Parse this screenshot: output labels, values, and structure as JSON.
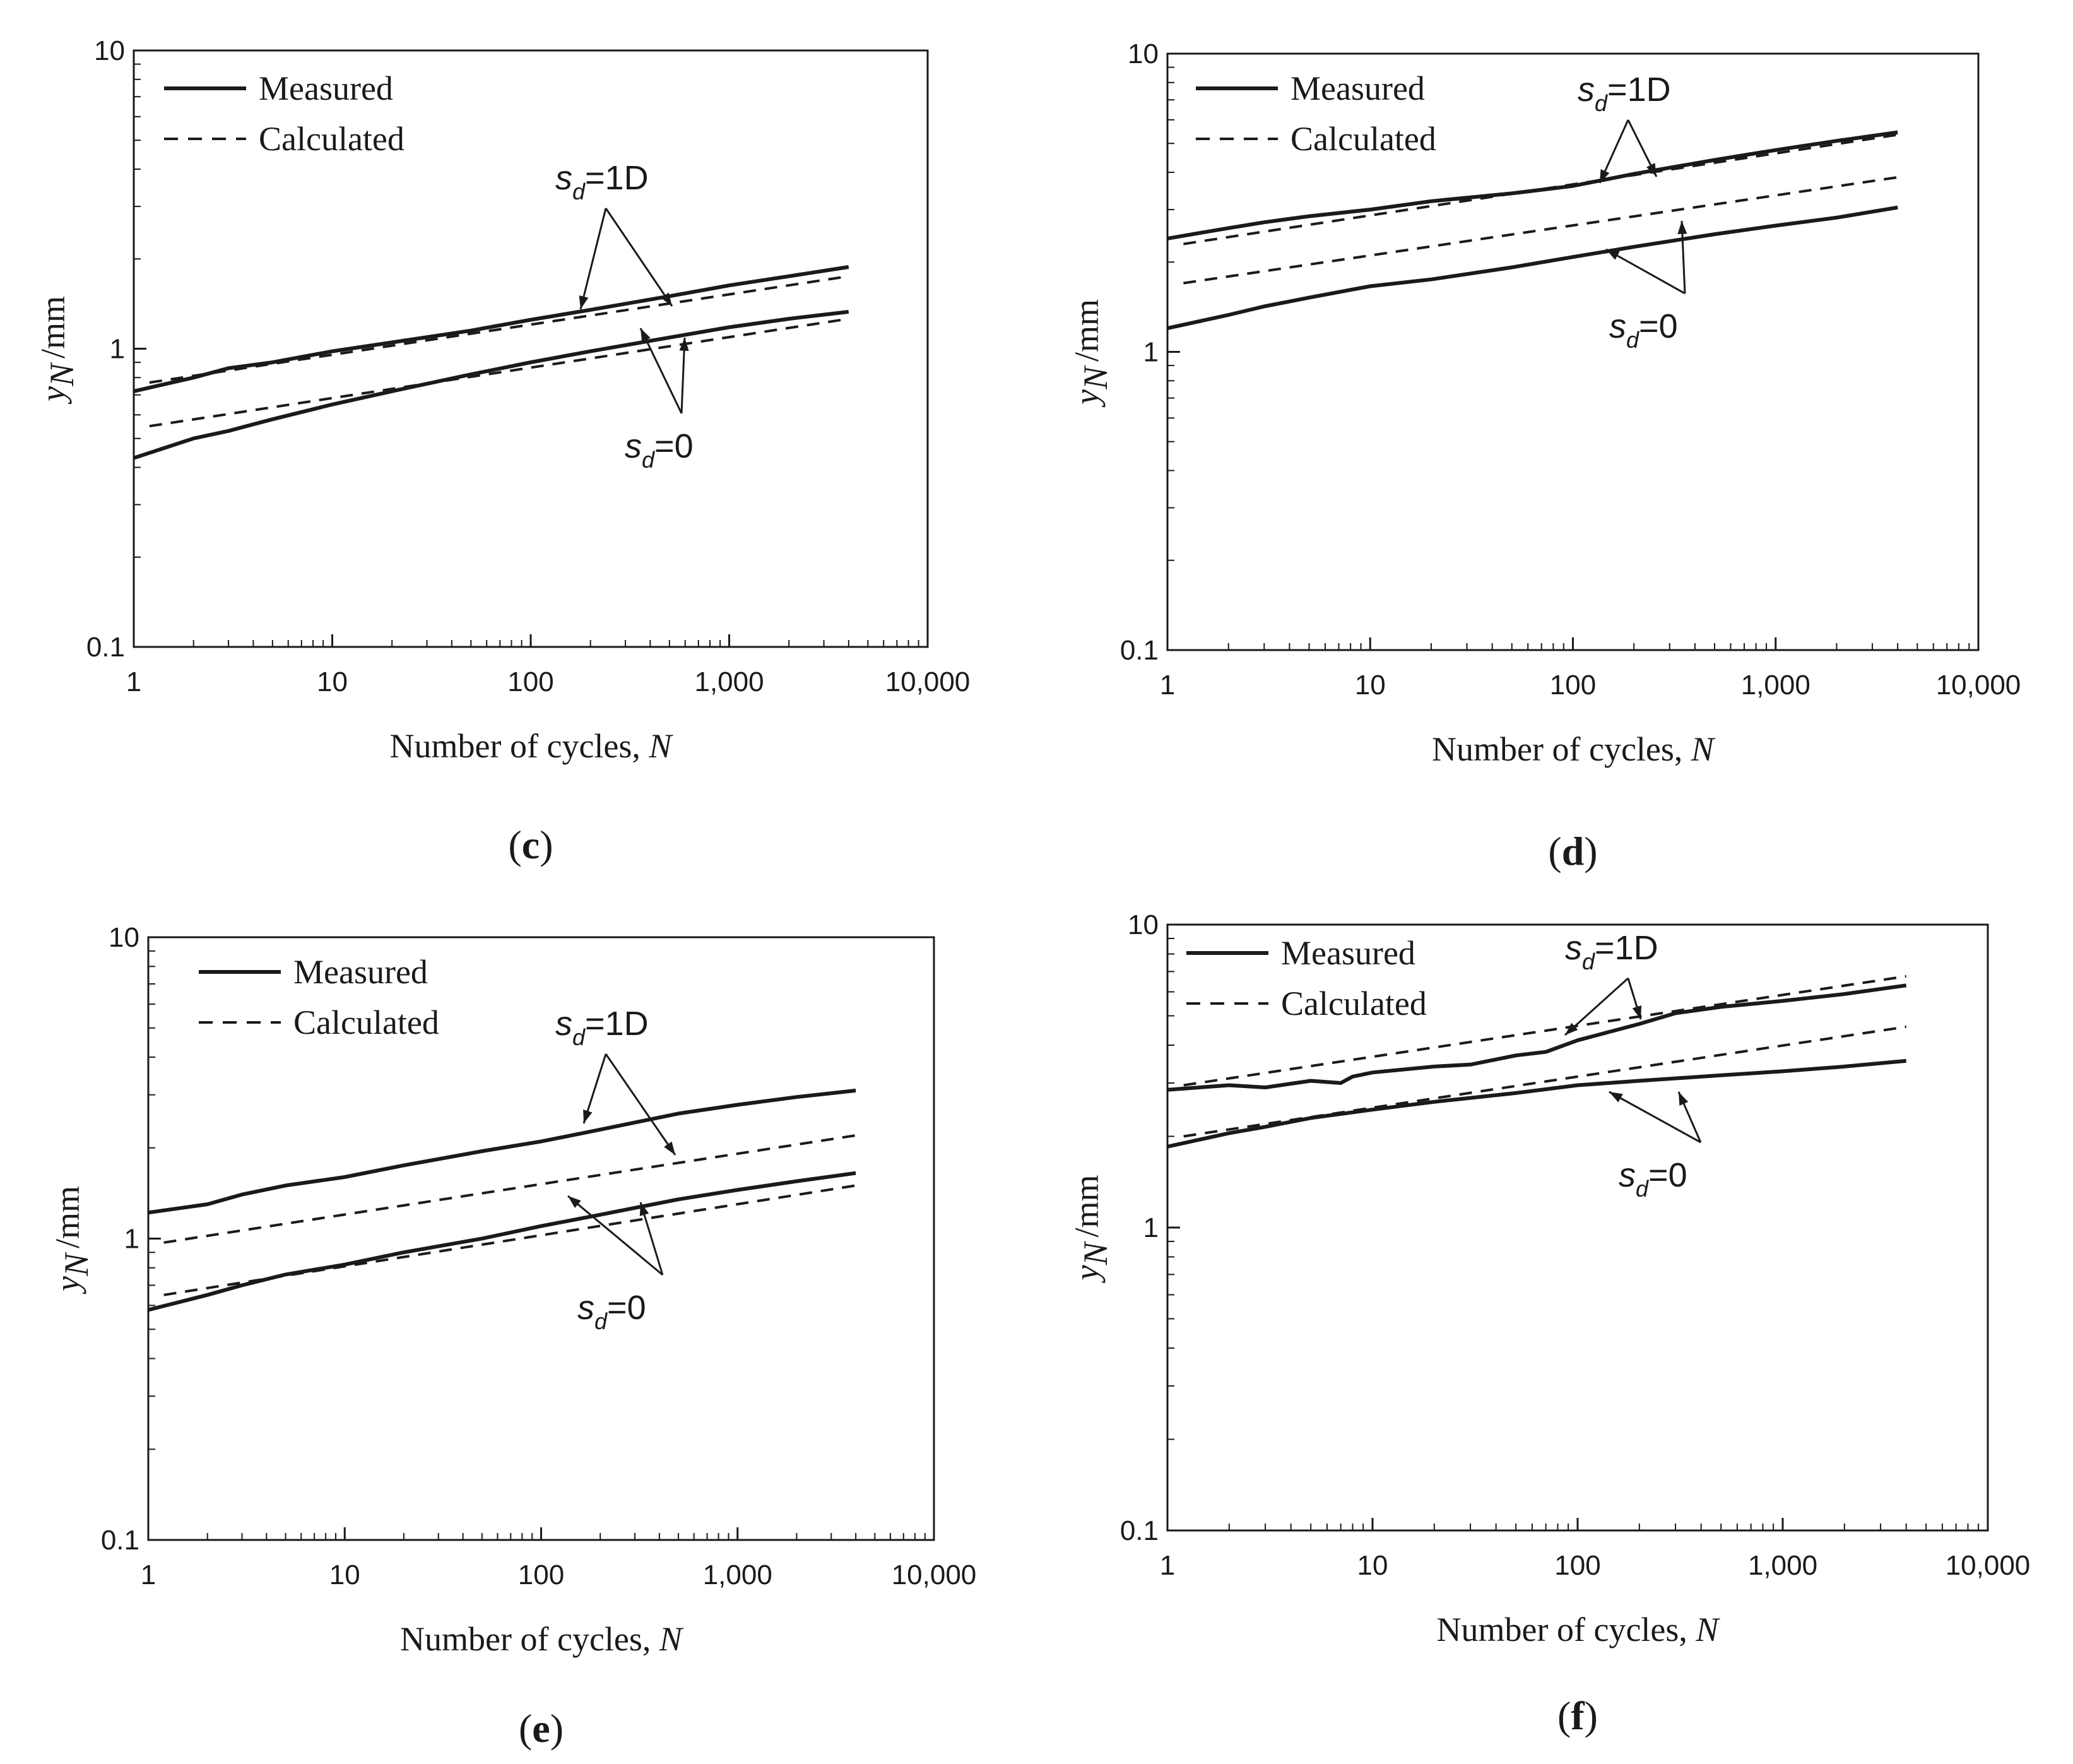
{
  "chart_data": [
    {
      "type": "line",
      "panel_label": "c",
      "xlabel": "Number of cycles,",
      "xlabel_var": "N",
      "ylabel": "y",
      "ylabel_sub": "N",
      "ylabel_unit": "/mm",
      "xscale": "log",
      "yscale": "log",
      "xlim": [
        1,
        10000
      ],
      "ylim": [
        0.1,
        10
      ],
      "xticks": [
        "1",
        "10",
        "100",
        "1,000",
        "10,000"
      ],
      "yticks": [
        "0.1",
        "1",
        "10"
      ],
      "legend": {
        "position": "top-left",
        "entries": [
          {
            "label": "Measured",
            "style": "solid"
          },
          {
            "label": "Calculated",
            "style": "dashed"
          }
        ]
      },
      "annotations": [
        {
          "var": "s",
          "sub": "d",
          "text": "=1D",
          "position": "above"
        },
        {
          "var": "s",
          "sub": "d",
          "text": "=0",
          "position": "below"
        }
      ],
      "series": [
        {
          "name": "Measured s_d=1D",
          "style": "solid",
          "x": [
            1,
            2,
            3,
            5,
            10,
            20,
            50,
            100,
            200,
            500,
            1000,
            2000,
            4000
          ],
          "y": [
            0.72,
            0.8,
            0.86,
            0.9,
            0.98,
            1.05,
            1.15,
            1.25,
            1.35,
            1.5,
            1.63,
            1.75,
            1.88
          ]
        },
        {
          "name": "Calculated s_d=1D",
          "style": "dashed",
          "x": [
            1.2,
            4000
          ],
          "y": [
            0.77,
            1.75
          ]
        },
        {
          "name": "Measured s_d=0",
          "style": "solid",
          "x": [
            1,
            2,
            3,
            5,
            10,
            20,
            50,
            100,
            200,
            500,
            1000,
            2000,
            4000
          ],
          "y": [
            0.43,
            0.5,
            0.53,
            0.58,
            0.65,
            0.72,
            0.82,
            0.9,
            0.98,
            1.09,
            1.18,
            1.26,
            1.33
          ]
        },
        {
          "name": "Calculated s_d=0",
          "style": "dashed",
          "x": [
            1.2,
            4000
          ],
          "y": [
            0.55,
            1.26
          ]
        }
      ]
    },
    {
      "type": "line",
      "panel_label": "d",
      "xlabel": "Number of cycles,",
      "xlabel_var": "N",
      "ylabel": "y",
      "ylabel_sub": "N",
      "ylabel_unit": "/mm",
      "xscale": "log",
      "yscale": "log",
      "xlim": [
        1,
        10000
      ],
      "ylim": [
        0.1,
        10
      ],
      "xticks": [
        "1",
        "10",
        "100",
        "1,000",
        "10,000"
      ],
      "yticks": [
        "0.1",
        "1",
        "10"
      ],
      "legend": {
        "position": "top-left",
        "entries": [
          {
            "label": "Measured",
            "style": "solid"
          },
          {
            "label": "Calculated",
            "style": "dashed"
          }
        ]
      },
      "annotations": [
        {
          "var": "s",
          "sub": "d",
          "text": "=1D",
          "position": "above"
        },
        {
          "var": "s",
          "sub": "d",
          "text": "=0",
          "position": "below"
        }
      ],
      "series": [
        {
          "name": "Measured s_d=1D",
          "style": "solid",
          "x": [
            1,
            2,
            3,
            5,
            10,
            20,
            50,
            100,
            200,
            500,
            1000,
            2000,
            4000
          ],
          "y": [
            2.4,
            2.6,
            2.72,
            2.85,
            3.0,
            3.2,
            3.4,
            3.6,
            3.95,
            4.4,
            4.75,
            5.1,
            5.45
          ]
        },
        {
          "name": "Calculated s_d=1D",
          "style": "dashed",
          "x": [
            1.2,
            4000
          ],
          "y": [
            2.3,
            5.35
          ]
        },
        {
          "name": "Measured s_d=0",
          "style": "solid",
          "x": [
            1,
            2,
            3,
            5,
            10,
            20,
            50,
            100,
            200,
            500,
            1000,
            2000,
            4000
          ],
          "y": [
            1.2,
            1.33,
            1.42,
            1.52,
            1.66,
            1.75,
            1.92,
            2.08,
            2.25,
            2.48,
            2.65,
            2.82,
            3.05
          ]
        },
        {
          "name": "Calculated s_d=0",
          "style": "dashed",
          "x": [
            1.2,
            4000
          ],
          "y": [
            1.7,
            3.85
          ]
        }
      ]
    },
    {
      "type": "line",
      "panel_label": "e",
      "xlabel": "Number of cycles,",
      "xlabel_var": "N",
      "ylabel": "y",
      "ylabel_sub": "N",
      "ylabel_unit": "/mm",
      "xscale": "log",
      "yscale": "log",
      "xlim": [
        1,
        10000
      ],
      "ylim": [
        0.1,
        10
      ],
      "xticks": [
        "1",
        "10",
        "100",
        "1,000",
        "10,000"
      ],
      "yticks": [
        "0.1",
        "1",
        "10"
      ],
      "legend": {
        "position": "top-left",
        "entries": [
          {
            "label": "Measured",
            "style": "solid"
          },
          {
            "label": "Calculated",
            "style": "dashed"
          }
        ]
      },
      "annotations": [
        {
          "var": "s",
          "sub": "d",
          "text": "=1D",
          "position": "above"
        },
        {
          "var": "s",
          "sub": "d",
          "text": "=0",
          "position": "below"
        }
      ],
      "series": [
        {
          "name": "Measured s_d=1D",
          "style": "solid",
          "x": [
            1,
            2,
            3,
            5,
            10,
            20,
            50,
            100,
            200,
            500,
            1000,
            2000,
            4000
          ],
          "y": [
            1.22,
            1.3,
            1.4,
            1.5,
            1.6,
            1.75,
            1.95,
            2.1,
            2.3,
            2.6,
            2.78,
            2.95,
            3.1
          ]
        },
        {
          "name": "Calculated s_d=1D",
          "style": "dashed",
          "x": [
            1.2,
            4000
          ],
          "y": [
            0.97,
            2.2
          ]
        },
        {
          "name": "Measured s_d=0",
          "style": "solid",
          "x": [
            1,
            2,
            3,
            5,
            10,
            20,
            50,
            100,
            200,
            500,
            1000,
            2000,
            4000
          ],
          "y": [
            0.58,
            0.65,
            0.7,
            0.76,
            0.82,
            0.9,
            1.0,
            1.1,
            1.2,
            1.35,
            1.45,
            1.55,
            1.65
          ]
        },
        {
          "name": "Calculated s_d=0",
          "style": "dashed",
          "x": [
            1.2,
            4000
          ],
          "y": [
            0.65,
            1.5
          ]
        }
      ]
    },
    {
      "type": "line",
      "panel_label": "f",
      "xlabel": "Number of cycles,",
      "xlabel_var": "N",
      "ylabel": "y",
      "ylabel_sub": "N",
      "ylabel_unit": "/mm",
      "xscale": "log",
      "yscale": "log",
      "xlim": [
        1,
        10000
      ],
      "ylim": [
        0.1,
        10
      ],
      "xticks": [
        "1",
        "10",
        "100",
        "1,000",
        "10,000"
      ],
      "yticks": [
        "0.1",
        "1",
        "10"
      ],
      "legend": {
        "position": "top-left",
        "entries": [
          {
            "label": "Measured",
            "style": "solid"
          },
          {
            "label": "Calculated",
            "style": "dashed"
          }
        ]
      },
      "annotations": [
        {
          "var": "s",
          "sub": "d",
          "text": "=1D",
          "position": "above"
        },
        {
          "var": "s",
          "sub": "d",
          "text": "=0",
          "position": "below"
        }
      ],
      "series": [
        {
          "name": "Measured s_d=1D",
          "style": "solid",
          "x": [
            1,
            2,
            3,
            5,
            7,
            8,
            10,
            20,
            30,
            50,
            70,
            100,
            200,
            300,
            500,
            1000,
            2000,
            4000
          ],
          "y": [
            2.85,
            2.95,
            2.9,
            3.05,
            3.0,
            3.15,
            3.25,
            3.4,
            3.45,
            3.7,
            3.8,
            4.15,
            4.7,
            5.1,
            5.35,
            5.6,
            5.9,
            6.3
          ]
        },
        {
          "name": "Calculated s_d=1D",
          "style": "dashed",
          "x": [
            1.2,
            4000
          ],
          "y": [
            2.95,
            6.75
          ]
        },
        {
          "name": "Measured s_d=0",
          "style": "solid",
          "x": [
            1,
            2,
            3,
            5,
            10,
            20,
            50,
            100,
            200,
            500,
            1000,
            2000,
            4000
          ],
          "y": [
            1.85,
            2.05,
            2.15,
            2.3,
            2.45,
            2.6,
            2.78,
            2.95,
            3.05,
            3.18,
            3.28,
            3.4,
            3.55
          ]
        },
        {
          "name": "Calculated s_d=0",
          "style": "dashed",
          "x": [
            1.2,
            4000
          ],
          "y": [
            2.0,
            4.6
          ]
        }
      ]
    }
  ]
}
